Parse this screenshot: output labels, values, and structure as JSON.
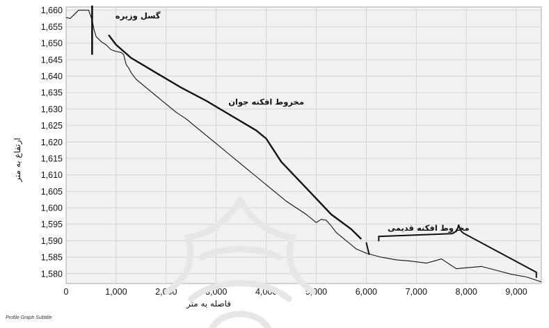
{
  "chart_data": {
    "type": "line",
    "xlabel": "فاصله به متر",
    "ylabel": "ارتفاع به متر",
    "subtitle": "Profile Graph Subtitle",
    "xlim": [
      0,
      9500
    ],
    "ylim": [
      1577,
      1661
    ],
    "grid": true,
    "x_ticks": [
      0,
      1000,
      2000,
      3000,
      4000,
      5000,
      6000,
      7000,
      8000,
      9000
    ],
    "x_tick_labels": [
      "0",
      "1,000",
      "2,000",
      "3,000",
      "4,000",
      "5,000",
      "6,000",
      "7,000",
      "8,000",
      "9,000"
    ],
    "y_ticks": [
      1580,
      1585,
      1590,
      1595,
      1600,
      1605,
      1610,
      1615,
      1620,
      1625,
      1630,
      1635,
      1640,
      1645,
      1650,
      1655,
      1660
    ],
    "y_tick_labels": [
      "1,580",
      "1,585",
      "1,590",
      "1,595",
      "1,600",
      "1,605",
      "1,610",
      "1,615",
      "1,620",
      "1,625",
      "1,630",
      "1,635",
      "1,640",
      "1,645",
      "1,650",
      "1,655",
      "1,660"
    ],
    "series": [
      {
        "x": [
          0,
          80,
          150,
          250,
          450,
          520,
          560,
          600,
          700,
          800,
          900,
          1000,
          1100,
          1150,
          1200,
          1250,
          1300,
          1400,
          1600,
          1800,
          2000,
          2200,
          2400,
          2600,
          2800,
          3000,
          3200,
          3400,
          3600,
          3800,
          4000,
          4200,
          4400,
          4600,
          4800,
          5000,
          5100,
          5200,
          5300,
          5400,
          5600,
          5800,
          6000,
          6300,
          6600,
          6900,
          7200,
          7400,
          7500,
          7600,
          7800,
          8000,
          8300,
          8600,
          8900,
          9200,
          9500
        ],
        "y": [
          1657.8,
          1657.5,
          1658.5,
          1660,
          1660,
          1657,
          1654,
          1652,
          1650.5,
          1649.5,
          1648,
          1647.5,
          1647.2,
          1646.5,
          1643.5,
          1642.5,
          1641,
          1639,
          1636.5,
          1634,
          1631.5,
          1629,
          1627,
          1624.5,
          1622,
          1619.5,
          1617,
          1614.5,
          1612,
          1609.5,
          1607,
          1604.5,
          1602,
          1600,
          1598,
          1595.5,
          1596.5,
          1596.2,
          1594.5,
          1592.5,
          1590,
          1587.5,
          1586.2,
          1585,
          1584.2,
          1583.8,
          1583.2,
          1584,
          1584.5,
          1583.5,
          1581.5,
          1581.8,
          1582.2,
          1581,
          1579.8,
          1579,
          1577.5
        ]
      },
      {
        "x": [
          850,
          1000,
          1300,
          1800,
          2300,
          2800,
          3300,
          3800,
          4000,
          4300,
          4800,
          5300,
          5700,
          5900
        ],
        "y": [
          1652.5,
          1649.5,
          1645.5,
          1641,
          1636.5,
          1632.5,
          1628,
          1623.5,
          1621,
          1614,
          1606,
          1598,
          1593.5,
          1590.5
        ]
      }
    ],
    "annotations": [
      {
        "text": "گسل وزیره",
        "x": 600,
        "y": 1657.5
      },
      {
        "text": "مخروط افکنه جوان",
        "x": 4000,
        "y": 1628
      },
      {
        "text": "مخروط افکنه قدیمی",
        "x": 7800,
        "y": 1593
      }
    ]
  }
}
